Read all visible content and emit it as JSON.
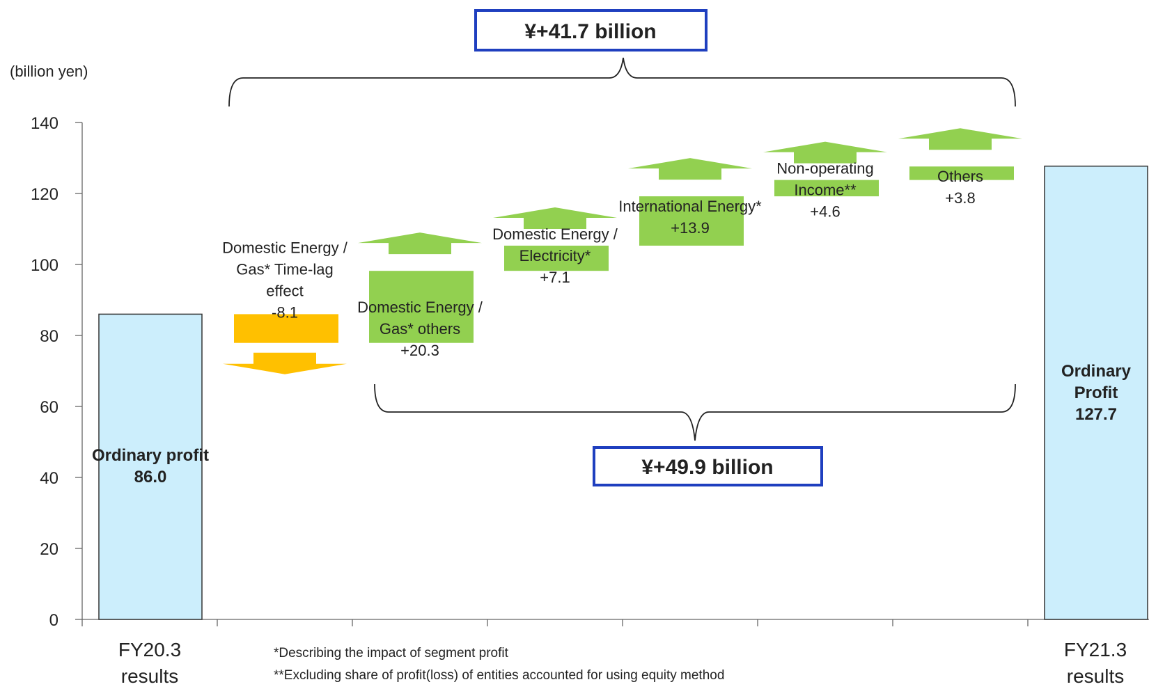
{
  "chart_data": {
    "type": "waterfall",
    "ylabel": "(billion yen)",
    "ylim": [
      0,
      140
    ],
    "yticks": [
      0,
      20,
      40,
      60,
      80,
      100,
      120,
      140
    ],
    "grid": false,
    "start": {
      "value": 86.0,
      "label_lines": [
        "Ordinary profit",
        "86.0"
      ],
      "category_lines": [
        "FY20.3",
        "results"
      ]
    },
    "end": {
      "value": 127.7,
      "label_lines": [
        "Ordinary",
        "Profit",
        "127.7"
      ],
      "category_lines": [
        "FY21.3",
        "results"
      ]
    },
    "steps": [
      {
        "value": -8.1,
        "text_lines": [
          "Domestic Energy /",
          "Gas* Time-lag",
          "effect",
          "-8.1"
        ]
      },
      {
        "value": 20.3,
        "text_lines": [
          "Domestic Energy /",
          "Gas* others",
          "+20.3"
        ]
      },
      {
        "value": 7.1,
        "text_lines": [
          "Domestic Energy /",
          "Electricity*",
          "+7.1"
        ]
      },
      {
        "value": 13.9,
        "text_lines": [
          "International Energy*",
          "+13.9"
        ]
      },
      {
        "value": 4.6,
        "text_lines": [
          "Non-operating",
          "Income**",
          "+4.6"
        ]
      },
      {
        "value": 3.8,
        "text_lines": [
          "Others",
          "+3.8"
        ]
      }
    ],
    "total_change_label": "¥+41.7 billion",
    "segment_change_label": "¥+49.9 billion",
    "colors": {
      "endpoint_fill": "#cceefc",
      "increase_fill": "#92d050",
      "decrease_fill": "#ffc000",
      "box_border": "#1f3fbf"
    }
  },
  "footnotes": [
    "*Describing the impact of segment profit",
    "**Excluding share of profit(loss) of entities accounted for using equity method"
  ]
}
